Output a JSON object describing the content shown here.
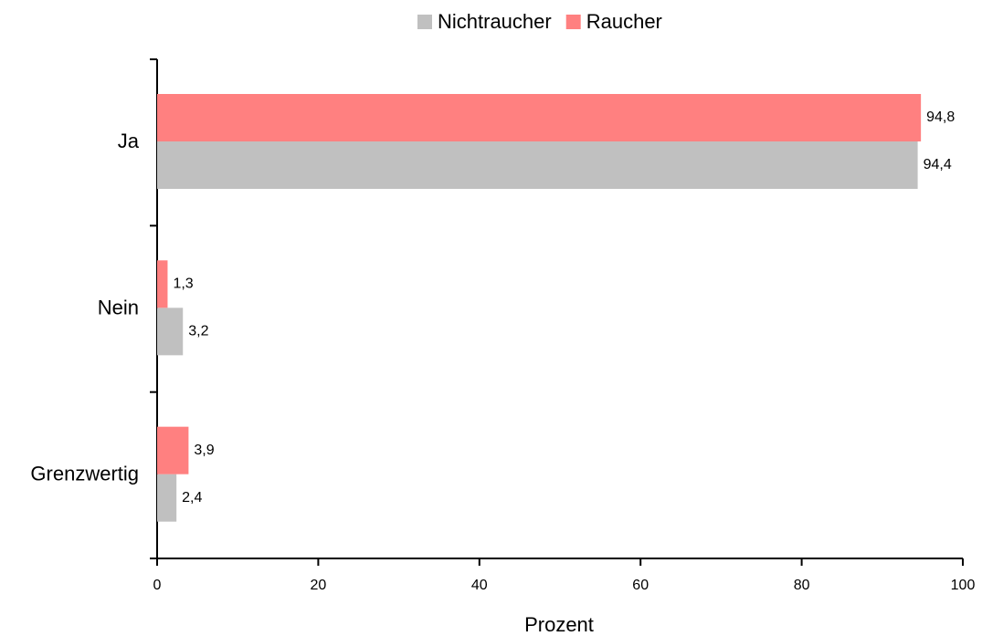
{
  "chart_data": {
    "type": "bar",
    "orientation": "horizontal",
    "categories": [
      "Ja",
      "Nein",
      "Grenzwertig"
    ],
    "series": [
      {
        "name": "Nichtraucher",
        "color": "#c0c0c0",
        "values": [
          94.4,
          3.2,
          2.4
        ],
        "value_labels": [
          "94,4",
          "3,2",
          "2,4"
        ]
      },
      {
        "name": "Raucher",
        "color": "#ff8080",
        "values": [
          94.8,
          1.3,
          3.9
        ],
        "value_labels": [
          "94,8",
          "1,3",
          "3,9"
        ]
      }
    ],
    "xlabel": "Prozent",
    "xlim": [
      0,
      100
    ],
    "xticks": [
      0,
      20,
      40,
      60,
      80,
      100
    ],
    "legend": "top"
  }
}
